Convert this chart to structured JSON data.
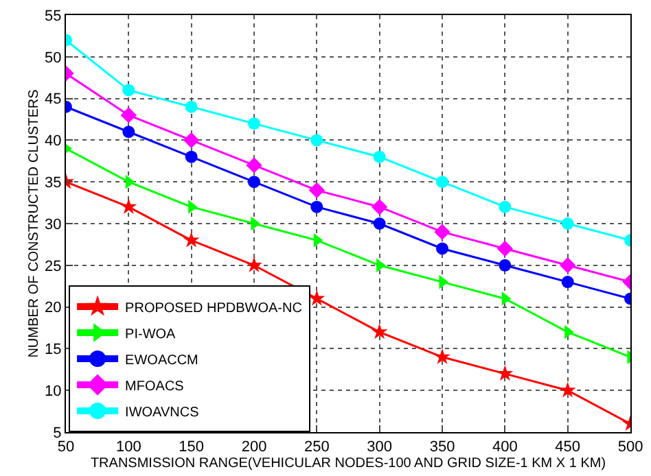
{
  "chart_data": {
    "type": "line",
    "xlabel": "TRANSMISSION RANGE(VEHICULAR NODES-100 AND GRID SIZE-1 KM X 1 KM)",
    "ylabel": "NUMBER OF CONSTRUCTED CLUSTERS",
    "x": [
      50,
      100,
      150,
      200,
      250,
      300,
      350,
      400,
      450,
      500
    ],
    "xlim": [
      50,
      500
    ],
    "xticks": [
      50,
      100,
      150,
      200,
      250,
      300,
      350,
      400,
      450,
      500
    ],
    "ylim": [
      5,
      55
    ],
    "yticks": [
      5,
      10,
      15,
      20,
      25,
      30,
      35,
      40,
      45,
      50,
      55
    ],
    "grid": true,
    "legend": "bottom left",
    "line_style": "solid",
    "series": [
      {
        "name": "PROPOSED HPDBWOA-NC",
        "color": "#ff0000",
        "marker": "star",
        "values": [
          35,
          32,
          28,
          25,
          21,
          17,
          14,
          12,
          10,
          6
        ]
      },
      {
        "name": "PI-WOA",
        "color": "#00ff00",
        "marker": "triangle",
        "values": [
          39,
          35,
          32,
          30,
          28,
          25,
          23,
          21,
          17,
          14
        ]
      },
      {
        "name": "EWOACCM",
        "color": "#0000ff",
        "marker": "circle",
        "values": [
          44,
          41,
          38,
          35,
          32,
          30,
          27,
          25,
          23,
          21
        ]
      },
      {
        "name": "MFOACS",
        "color": "#ff00ff",
        "marker": "diamond",
        "values": [
          48,
          43,
          40,
          37,
          34,
          32,
          29,
          27,
          25,
          23
        ]
      },
      {
        "name": "IWOAVNCS",
        "color": "#00ffff",
        "marker": "circle",
        "values": [
          52,
          46,
          44,
          42,
          40,
          38,
          35,
          32,
          30,
          28
        ]
      }
    ]
  }
}
